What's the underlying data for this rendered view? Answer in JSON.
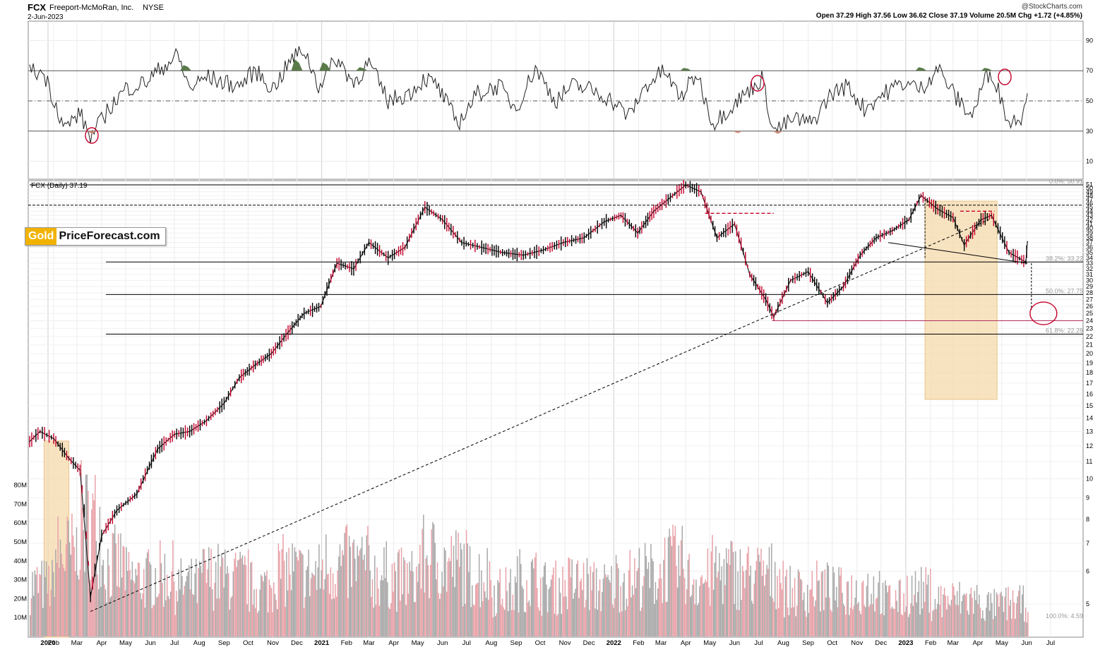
{
  "header": {
    "symbol": "FCX",
    "company": "Freeport-McMoRan, Inc.",
    "exchange": "NYSE",
    "date": "2-Jun-2023",
    "ohlc_text": "Open 37.29  High 37.56  Low 36.62  Close 37.19  Volume 20.5M  Chg +1.72 (+4.85%)",
    "copyright": "@StockCharts.com"
  },
  "price_label": "FCX (Daily) 37.19",
  "logo": {
    "gold": "Gold",
    "rest": "PriceForecast.com"
  },
  "colors": {
    "up": "#000000",
    "down": "#c4002a",
    "volume_up": "#a9a9a9",
    "volume_down": "#e8a2a8",
    "highlight_box": "#f5d9ab",
    "rsi_overbought": "#5a7a4a",
    "rsi_oversold": "#c58a7a",
    "annotation": "#c4002a"
  },
  "chart_data": {
    "type": "line",
    "symbol": "FCX",
    "x_labels": [
      "2020",
      "Feb",
      "Mar",
      "Apr",
      "May",
      "Jun",
      "Jul",
      "Aug",
      "Sep",
      "Oct",
      "Nov",
      "Dec",
      "2021",
      "Feb",
      "Mar",
      "Apr",
      "May",
      "Jun",
      "Jul",
      "Aug",
      "Sep",
      "Oct",
      "Nov",
      "Dec",
      "2022",
      "Feb",
      "Mar",
      "Apr",
      "May",
      "Jun",
      "Jul",
      "Aug",
      "Sep",
      "Oct",
      "Nov",
      "Dec",
      "2023",
      "Feb",
      "Mar",
      "Apr",
      "May",
      "Jun",
      "Jul"
    ],
    "price_ticks": [
      5,
      6,
      7,
      8,
      9,
      10,
      11,
      12,
      13,
      14,
      15,
      16,
      17,
      18,
      19,
      20,
      21,
      22,
      23,
      24,
      25,
      26,
      27,
      28,
      29,
      30,
      31,
      32,
      33,
      34,
      35,
      36,
      37,
      38,
      39,
      40,
      41,
      42,
      43,
      44,
      45,
      46,
      47,
      48,
      49,
      50,
      51
    ],
    "rsi_ticks": [
      10,
      30,
      50,
      70,
      90
    ],
    "volume_ticks": [
      "10M",
      "20M",
      "30M",
      "40M",
      "50M",
      "60M",
      "70M",
      "80M"
    ],
    "fib_levels": [
      "0.0%: 50.91",
      "38.2%: 33.22",
      "50.0%: 27.75",
      "61.8%: 22.28",
      "100.0%: 4.59"
    ],
    "price_series": {
      "name": "FCX (Daily)",
      "x": [
        "2020-01-02",
        "2020-01-15",
        "2020-02-01",
        "2020-02-20",
        "2020-03-05",
        "2020-03-18",
        "2020-04-01",
        "2020-04-20",
        "2020-05-15",
        "2020-06-10",
        "2020-07-01",
        "2020-07-20",
        "2020-08-10",
        "2020-09-01",
        "2020-09-20",
        "2020-10-10",
        "2020-10-30",
        "2020-11-20",
        "2020-12-10",
        "2020-12-31",
        "2021-01-20",
        "2021-02-10",
        "2021-03-01",
        "2021-03-25",
        "2021-04-15",
        "2021-05-10",
        "2021-06-01",
        "2021-06-25",
        "2021-07-20",
        "2021-08-15",
        "2021-09-10",
        "2021-10-05",
        "2021-10-30",
        "2021-11-25",
        "2021-12-20",
        "2022-01-10",
        "2022-01-31",
        "2022-02-20",
        "2022-03-10",
        "2022-04-01",
        "2022-04-20",
        "2022-05-10",
        "2022-06-01",
        "2022-06-20",
        "2022-07-10",
        "2022-07-20",
        "2022-08-10",
        "2022-09-01",
        "2022-09-25",
        "2022-10-15",
        "2022-11-05",
        "2022-11-25",
        "2022-12-15",
        "2023-01-05",
        "2023-01-20",
        "2023-02-10",
        "2023-03-01",
        "2023-03-15",
        "2023-04-05",
        "2023-04-18",
        "2023-05-10",
        "2023-05-31",
        "2023-06-02"
      ],
      "values": [
        12.3,
        13.0,
        12.5,
        11.2,
        10.5,
        5.2,
        7.3,
        8.4,
        9.2,
        11.8,
        12.8,
        13.0,
        13.8,
        15.2,
        17.5,
        18.8,
        20.0,
        22.5,
        25.0,
        26.0,
        33.0,
        32.0,
        37.0,
        34.0,
        36.0,
        45.0,
        42.0,
        37.0,
        36.0,
        35.0,
        34.5,
        35.5,
        37.0,
        38.0,
        41.5,
        43.0,
        39.0,
        44.0,
        47.0,
        50.9,
        49.0,
        38.0,
        41.0,
        31.0,
        27.0,
        24.5,
        30.0,
        31.5,
        26.5,
        29.0,
        34.5,
        38.0,
        39.5,
        42.0,
        48.0,
        44.5,
        42.5,
        36.5,
        42.0,
        43.0,
        35.0,
        33.2,
        37.19
      ]
    },
    "rsi_series": {
      "x": [
        "2020-01-02",
        "2020-01-20",
        "2020-02-15",
        "2020-03-05",
        "2020-03-18",
        "2020-04-10",
        "2020-05-01",
        "2020-05-25",
        "2020-06-15",
        "2020-07-05",
        "2020-07-20",
        "2020-08-10",
        "2020-09-01",
        "2020-09-20",
        "2020-10-10",
        "2020-11-01",
        "2020-11-25",
        "2020-12-10",
        "2020-12-28",
        "2021-01-20",
        "2021-02-10",
        "2021-03-01",
        "2021-03-25",
        "2021-04-20",
        "2021-05-10",
        "2021-05-25",
        "2021-06-20",
        "2021-07-15",
        "2021-08-10",
        "2021-09-01",
        "2021-09-25",
        "2021-10-20",
        "2021-11-10",
        "2021-12-01",
        "2021-12-25",
        "2022-01-20",
        "2022-02-10",
        "2022-03-05",
        "2022-03-25",
        "2022-04-15",
        "2022-05-05",
        "2022-05-25",
        "2022-06-15",
        "2022-07-05",
        "2022-07-20",
        "2022-08-15",
        "2022-09-05",
        "2022-09-30",
        "2022-10-20",
        "2022-11-10",
        "2022-12-05",
        "2022-12-28",
        "2023-01-20",
        "2023-02-10",
        "2023-03-05",
        "2023-03-25",
        "2023-04-10",
        "2023-04-20",
        "2023-05-10",
        "2023-05-25",
        "2023-06-02"
      ],
      "values": [
        70,
        68,
        32,
        42,
        25,
        45,
        58,
        62,
        72,
        80,
        58,
        66,
        62,
        60,
        70,
        58,
        78,
        84,
        60,
        78,
        62,
        75,
        50,
        55,
        65,
        60,
        35,
        55,
        60,
        45,
        72,
        50,
        60,
        58,
        52,
        40,
        60,
        70,
        52,
        68,
        35,
        45,
        55,
        65,
        30,
        38,
        35,
        55,
        60,
        45,
        55,
        62,
        58,
        72,
        52,
        40,
        65,
        68,
        35,
        40,
        55
      ]
    },
    "volume_series": {
      "unit": "M",
      "x": [
        "2020-01",
        "2020-02",
        "2020-03",
        "2020-04",
        "2020-05",
        "2020-06",
        "2020-07",
        "2020-08",
        "2020-09",
        "2020-10",
        "2020-11",
        "2020-12",
        "2021-01",
        "2021-02",
        "2021-03",
        "2021-04",
        "2021-05",
        "2021-06",
        "2021-07",
        "2021-08",
        "2021-09",
        "2021-10",
        "2021-11",
        "2021-12",
        "2022-01",
        "2022-02",
        "2022-03",
        "2022-04",
        "2022-05",
        "2022-06",
        "2022-07",
        "2022-08",
        "2022-09",
        "2022-10",
        "2022-11",
        "2022-12",
        "2023-01",
        "2023-02",
        "2023-03",
        "2023-04",
        "2023-05",
        "2023-06"
      ],
      "values": [
        25,
        40,
        55,
        35,
        28,
        30,
        25,
        30,
        28,
        24,
        32,
        30,
        35,
        35,
        30,
        28,
        38,
        35,
        30,
        22,
        28,
        24,
        26,
        24,
        28,
        30,
        35,
        28,
        32,
        30,
        30,
        22,
        24,
        22,
        24,
        18,
        22,
        18,
        18,
        15,
        16,
        20.5
      ]
    }
  }
}
